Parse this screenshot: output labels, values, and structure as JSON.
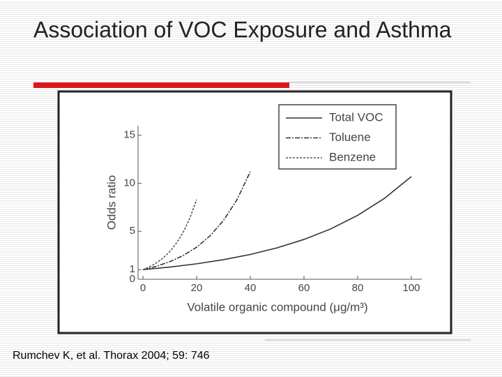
{
  "chart_data": {
    "type": "line",
    "title": "Association of VOC Exposure and Asthma",
    "source": "Rumchev K, et al. Thorax 2004; 59: 746",
    "xlabel": "Volatile organic compound (μg/m³)",
    "ylabel": "Odds ratio",
    "xlim": [
      0,
      100
    ],
    "ylim": [
      0,
      16
    ],
    "xticks": [
      0,
      20,
      40,
      60,
      80,
      100
    ],
    "yticks": [
      0,
      1,
      5,
      10,
      15
    ],
    "legend": "upper right",
    "series": [
      {
        "name": "Total VOC",
        "color": "#333333",
        "style": "solid",
        "x": [
          0,
          10,
          20,
          30,
          40,
          50,
          60,
          70,
          80,
          90,
          100
        ],
        "values": [
          1,
          1.27,
          1.61,
          2.04,
          2.58,
          3.27,
          4.15,
          5.25,
          6.66,
          8.43,
          10.7
        ]
      },
      {
        "name": "Toluene",
        "color": "#333333",
        "style": "dashdot",
        "x": [
          0,
          5,
          10,
          15,
          20,
          25,
          30,
          35,
          40
        ],
        "values": [
          1,
          1.35,
          1.83,
          2.47,
          3.34,
          4.52,
          6.12,
          8.27,
          11.2
        ]
      },
      {
        "name": "Benzene",
        "color": "#555555",
        "style": "dashed",
        "x": [
          0,
          2.5,
          5,
          7.5,
          10,
          12.5,
          15,
          17.5,
          20
        ],
        "values": [
          1,
          1.3,
          1.7,
          2.21,
          2.88,
          3.76,
          4.89,
          6.38,
          8.3
        ]
      }
    ]
  }
}
